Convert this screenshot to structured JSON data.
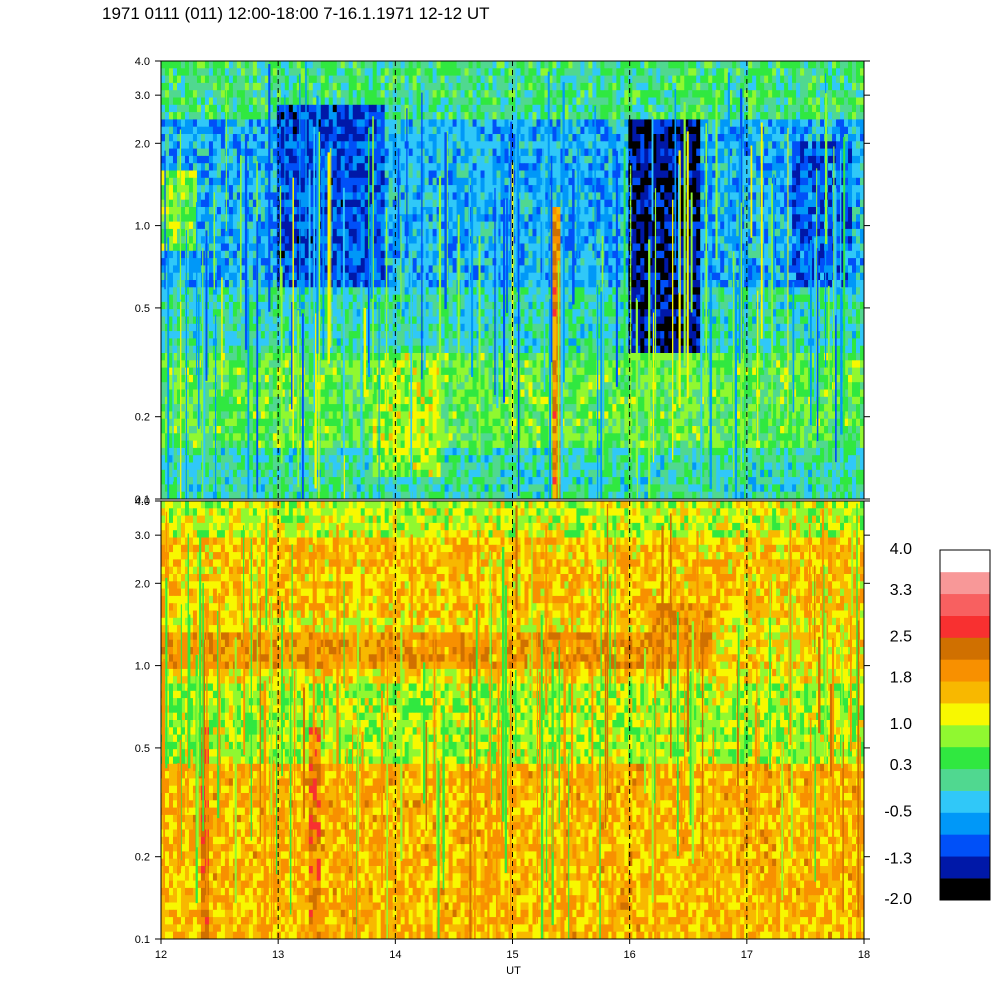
{
  "title": "1971 0111 (011) 12:00-18:00 7-16.1.1971  12-12 UT",
  "chart_data": [
    {
      "type": "heatmap",
      "panel": "upper",
      "x": {
        "label": "",
        "range": [
          12,
          18
        ],
        "ticks": []
      },
      "y": {
        "scale": "log",
        "range": [
          0.1,
          4.0
        ],
        "ticks": [
          {
            "v": 0.1,
            "label": "0.1"
          },
          {
            "v": 0.2,
            "label": "0.2"
          },
          {
            "v": 0.5,
            "label": "0.5"
          },
          {
            "v": 1.0,
            "label": "1.0"
          },
          {
            "v": 2.0,
            "label": "2.0"
          },
          {
            "v": 3.0,
            "label": "3.0"
          },
          {
            "v": 4.0,
            "label": "4.0"
          }
        ]
      },
      "dashed_vlines": [
        13,
        14,
        15,
        16,
        17
      ],
      "background_levels": [
        {
          "y_from": 0.1,
          "y_to": 0.15,
          "level": 0.0
        },
        {
          "y_from": 0.15,
          "y_to": 0.35,
          "level": 0.5
        },
        {
          "y_from": 0.35,
          "y_to": 0.6,
          "level": 0.0
        },
        {
          "y_from": 0.6,
          "y_to": 2.5,
          "level": -0.5
        },
        {
          "y_from": 2.5,
          "y_to": 4.0,
          "level": 0.2
        }
      ],
      "features": [
        {
          "x_from": 13.0,
          "x_to": 13.9,
          "y_from": 0.6,
          "y_to": 2.8,
          "level": -1.1
        },
        {
          "x_from": 16.0,
          "x_to": 16.6,
          "y_from": 0.35,
          "y_to": 2.4,
          "level": -1.5
        },
        {
          "x_from": 17.4,
          "x_to": 17.9,
          "y_from": 0.6,
          "y_to": 2.0,
          "level": -1.0
        },
        {
          "x_from": 12.0,
          "x_to": 12.3,
          "y_from": 0.8,
          "y_to": 1.6,
          "level": 0.7
        },
        {
          "x_from": 13.8,
          "x_to": 14.4,
          "y_from": 0.12,
          "y_to": 0.35,
          "level": 0.9
        },
        {
          "x_from": 15.35,
          "x_to": 15.42,
          "y_from": 0.1,
          "y_to": 1.2,
          "level": 2.0
        }
      ]
    },
    {
      "type": "heatmap",
      "panel": "lower",
      "x": {
        "label": "UT",
        "range": [
          12,
          18
        ],
        "ticks": [
          {
            "v": 12,
            "label": "12"
          },
          {
            "v": 13,
            "label": "13"
          },
          {
            "v": 14,
            "label": "14"
          },
          {
            "v": 15,
            "label": "15"
          },
          {
            "v": 16,
            "label": "16"
          },
          {
            "v": 17,
            "label": "17"
          },
          {
            "v": 18,
            "label": "18"
          }
        ]
      },
      "y": {
        "scale": "log",
        "range": [
          0.1,
          4.0
        ],
        "ticks": [
          {
            "v": 0.1,
            "label": "0.1"
          },
          {
            "v": 0.2,
            "label": "0.2"
          },
          {
            "v": 0.5,
            "label": "0.5"
          },
          {
            "v": 1.0,
            "label": "1.0"
          },
          {
            "v": 2.0,
            "label": "2.0"
          },
          {
            "v": 3.0,
            "label": "3.0"
          },
          {
            "v": 4.0,
            "label": "4.0"
          }
        ]
      },
      "dashed_vlines": [
        13,
        14,
        15,
        16,
        17
      ],
      "background_levels": [
        {
          "y_from": 0.1,
          "y_to": 0.45,
          "level": 1.6
        },
        {
          "y_from": 0.45,
          "y_to": 0.85,
          "level": 0.9
        },
        {
          "y_from": 0.85,
          "y_to": 1.5,
          "level": 1.3
        },
        {
          "y_from": 1.5,
          "y_to": 3.0,
          "level": 1.5
        },
        {
          "y_from": 3.0,
          "y_to": 4.0,
          "level": 1.0
        }
      ],
      "features": [
        {
          "x_from": 12.0,
          "x_to": 16.7,
          "y_from": 0.95,
          "y_to": 1.35,
          "level": 1.9
        },
        {
          "x_from": 16.2,
          "x_to": 16.7,
          "y_from": 1.25,
          "y_to": 1.7,
          "level": 1.9
        },
        {
          "x_from": 12.35,
          "x_to": 12.42,
          "y_from": 0.1,
          "y_to": 0.6,
          "level": 2.3
        },
        {
          "x_from": 13.25,
          "x_to": 13.35,
          "y_from": 0.1,
          "y_to": 0.6,
          "level": 2.2
        }
      ]
    }
  ],
  "colorbar": {
    "colors": [
      "#000000",
      "#0018a8",
      "#0050f8",
      "#0098f8",
      "#30c8f8",
      "#50d890",
      "#30e840",
      "#90f830",
      "#f8f800",
      "#f8b800",
      "#f89000",
      "#d07000",
      "#f83030",
      "#f86060",
      "#f89898",
      "#ffffff"
    ],
    "labels": [
      {
        "v": 4.0,
        "label": "4.0"
      },
      {
        "v": 3.3,
        "label": "3.3"
      },
      {
        "v": 2.5,
        "label": "2.5"
      },
      {
        "v": 1.8,
        "label": "1.8"
      },
      {
        "v": 1.0,
        "label": "1.0"
      },
      {
        "v": 0.3,
        "label": "0.3"
      },
      {
        "v": -0.5,
        "label": "-0.5"
      },
      {
        "v": -1.3,
        "label": "-1.3"
      },
      {
        "v": -2.0,
        "label": "-2.0"
      }
    ],
    "range": [
      -2.0,
      4.0
    ]
  }
}
